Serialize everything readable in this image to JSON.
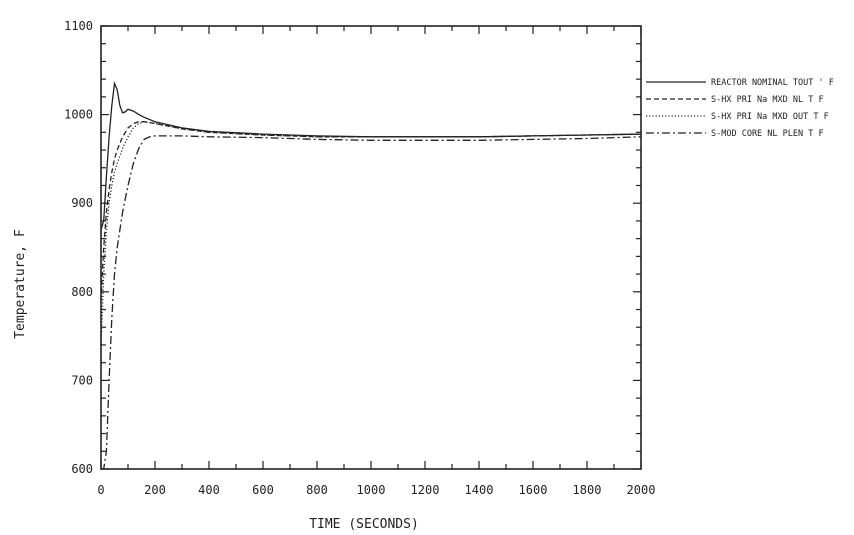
{
  "chart_data": {
    "type": "line",
    "title": "",
    "xlabel": "TIME  (SECONDS)",
    "ylabel": "Temperature, F",
    "xlim": [
      0,
      2000
    ],
    "ylim": [
      600,
      1100
    ],
    "x_ticks": [
      0,
      200,
      400,
      600,
      800,
      1000,
      1200,
      1400,
      1600,
      1800,
      2000
    ],
    "y_ticks": [
      600,
      700,
      800,
      900,
      1000,
      1100
    ],
    "grid": false,
    "legend_position": "right, outside plot",
    "series": [
      {
        "name": "REACTOR NOMINAL TOUT ' F",
        "dash": "solid",
        "x": [
          0,
          10,
          20,
          30,
          40,
          50,
          60,
          70,
          80,
          90,
          100,
          120,
          140,
          160,
          200,
          300,
          400,
          600,
          800,
          1000,
          1200,
          1400,
          1600,
          1800,
          2000
        ],
        "y": [
          870,
          880,
          930,
          975,
          1010,
          1035,
          1028,
          1010,
          1002,
          1003,
          1006,
          1004,
          1000,
          997,
          992,
          985,
          981,
          978,
          976,
          975,
          975,
          975,
          976,
          977,
          978
        ]
      },
      {
        "name": "S-HX PRI Na MXD NL T F",
        "dash": "dashed",
        "x": [
          0,
          10,
          20,
          30,
          40,
          50,
          60,
          80,
          100,
          120,
          140,
          160,
          200,
          300,
          400,
          600,
          800,
          1000,
          1200,
          1400,
          1600,
          1800,
          2000
        ],
        "y": [
          790,
          850,
          890,
          915,
          935,
          950,
          960,
          975,
          985,
          990,
          992,
          992,
          990,
          984,
          980,
          977,
          975,
          975,
          975,
          975,
          976,
          977,
          978
        ]
      },
      {
        "name": "S-HX PRI Na MXD OUT T F",
        "dash": "dotted",
        "x": [
          0,
          10,
          20,
          30,
          40,
          50,
          60,
          80,
          100,
          120,
          140,
          160,
          200,
          300,
          400,
          600,
          800,
          1000,
          1200,
          1400,
          1600,
          1800,
          2000
        ],
        "y": [
          740,
          820,
          870,
          900,
          920,
          935,
          945,
          962,
          975,
          985,
          990,
          992,
          990,
          984,
          980,
          977,
          975,
          975,
          975,
          975,
          976,
          977,
          978
        ]
      },
      {
        "name": "S-MOD CORE NL PLEN T F",
        "dash": "dashdot",
        "x": [
          0,
          10,
          20,
          30,
          40,
          50,
          60,
          80,
          100,
          120,
          140,
          160,
          180,
          200,
          300,
          400,
          600,
          800,
          1000,
          1200,
          1400,
          1600,
          1800,
          2000
        ],
        "y": [
          600,
          600,
          620,
          700,
          770,
          820,
          850,
          890,
          920,
          945,
          962,
          972,
          975,
          976,
          976,
          975,
          974,
          972,
          971,
          971,
          971,
          972,
          973,
          975
        ]
      }
    ]
  }
}
